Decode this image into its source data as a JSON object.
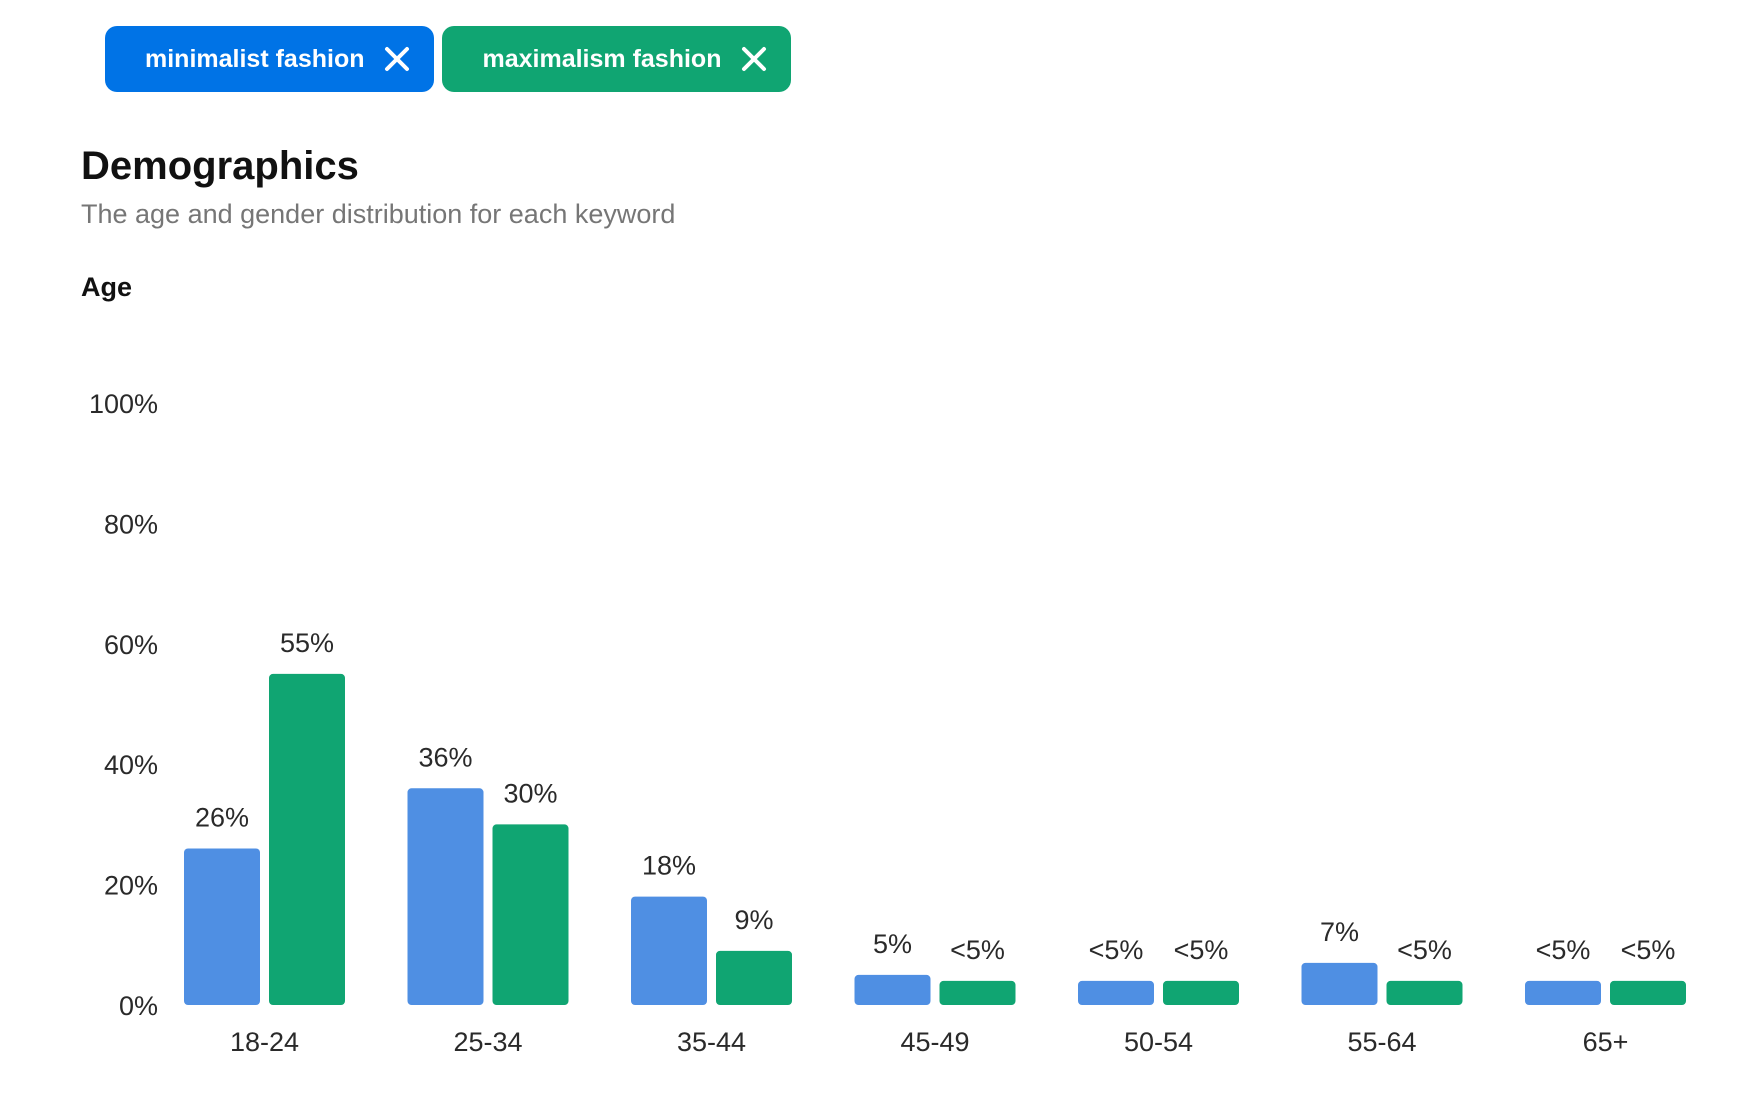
{
  "chips": [
    {
      "label": "minimalist fashion",
      "color": "#0073e6"
    },
    {
      "label": "maximalism fashion",
      "color": "#10a572"
    }
  ],
  "header": {
    "title": "Demographics",
    "subtitle": "The age and gender distribution for each keyword"
  },
  "section": {
    "label": "Age"
  },
  "chart_data": {
    "type": "bar",
    "categories": [
      "18-24",
      "25-34",
      "35-44",
      "45-49",
      "50-54",
      "55-64",
      "65+"
    ],
    "series": [
      {
        "name": "minimalist fashion",
        "color": "#4f8fe3",
        "values": [
          26,
          36,
          18,
          5,
          4,
          7,
          4
        ],
        "labels": [
          "26%",
          "36%",
          "18%",
          "5%",
          "<5%",
          "7%",
          "<5%"
        ]
      },
      {
        "name": "maximalism fashion",
        "color": "#10a572",
        "values": [
          55,
          30,
          9,
          4,
          4,
          4,
          4
        ],
        "labels": [
          "55%",
          "30%",
          "9%",
          "<5%",
          "<5%",
          "<5%",
          "<5%"
        ]
      }
    ],
    "yticks": [
      "0%",
      "20%",
      "40%",
      "60%",
      "80%",
      "100%"
    ],
    "ylim": [
      0,
      100
    ],
    "grid": false,
    "legend": "top-left"
  }
}
